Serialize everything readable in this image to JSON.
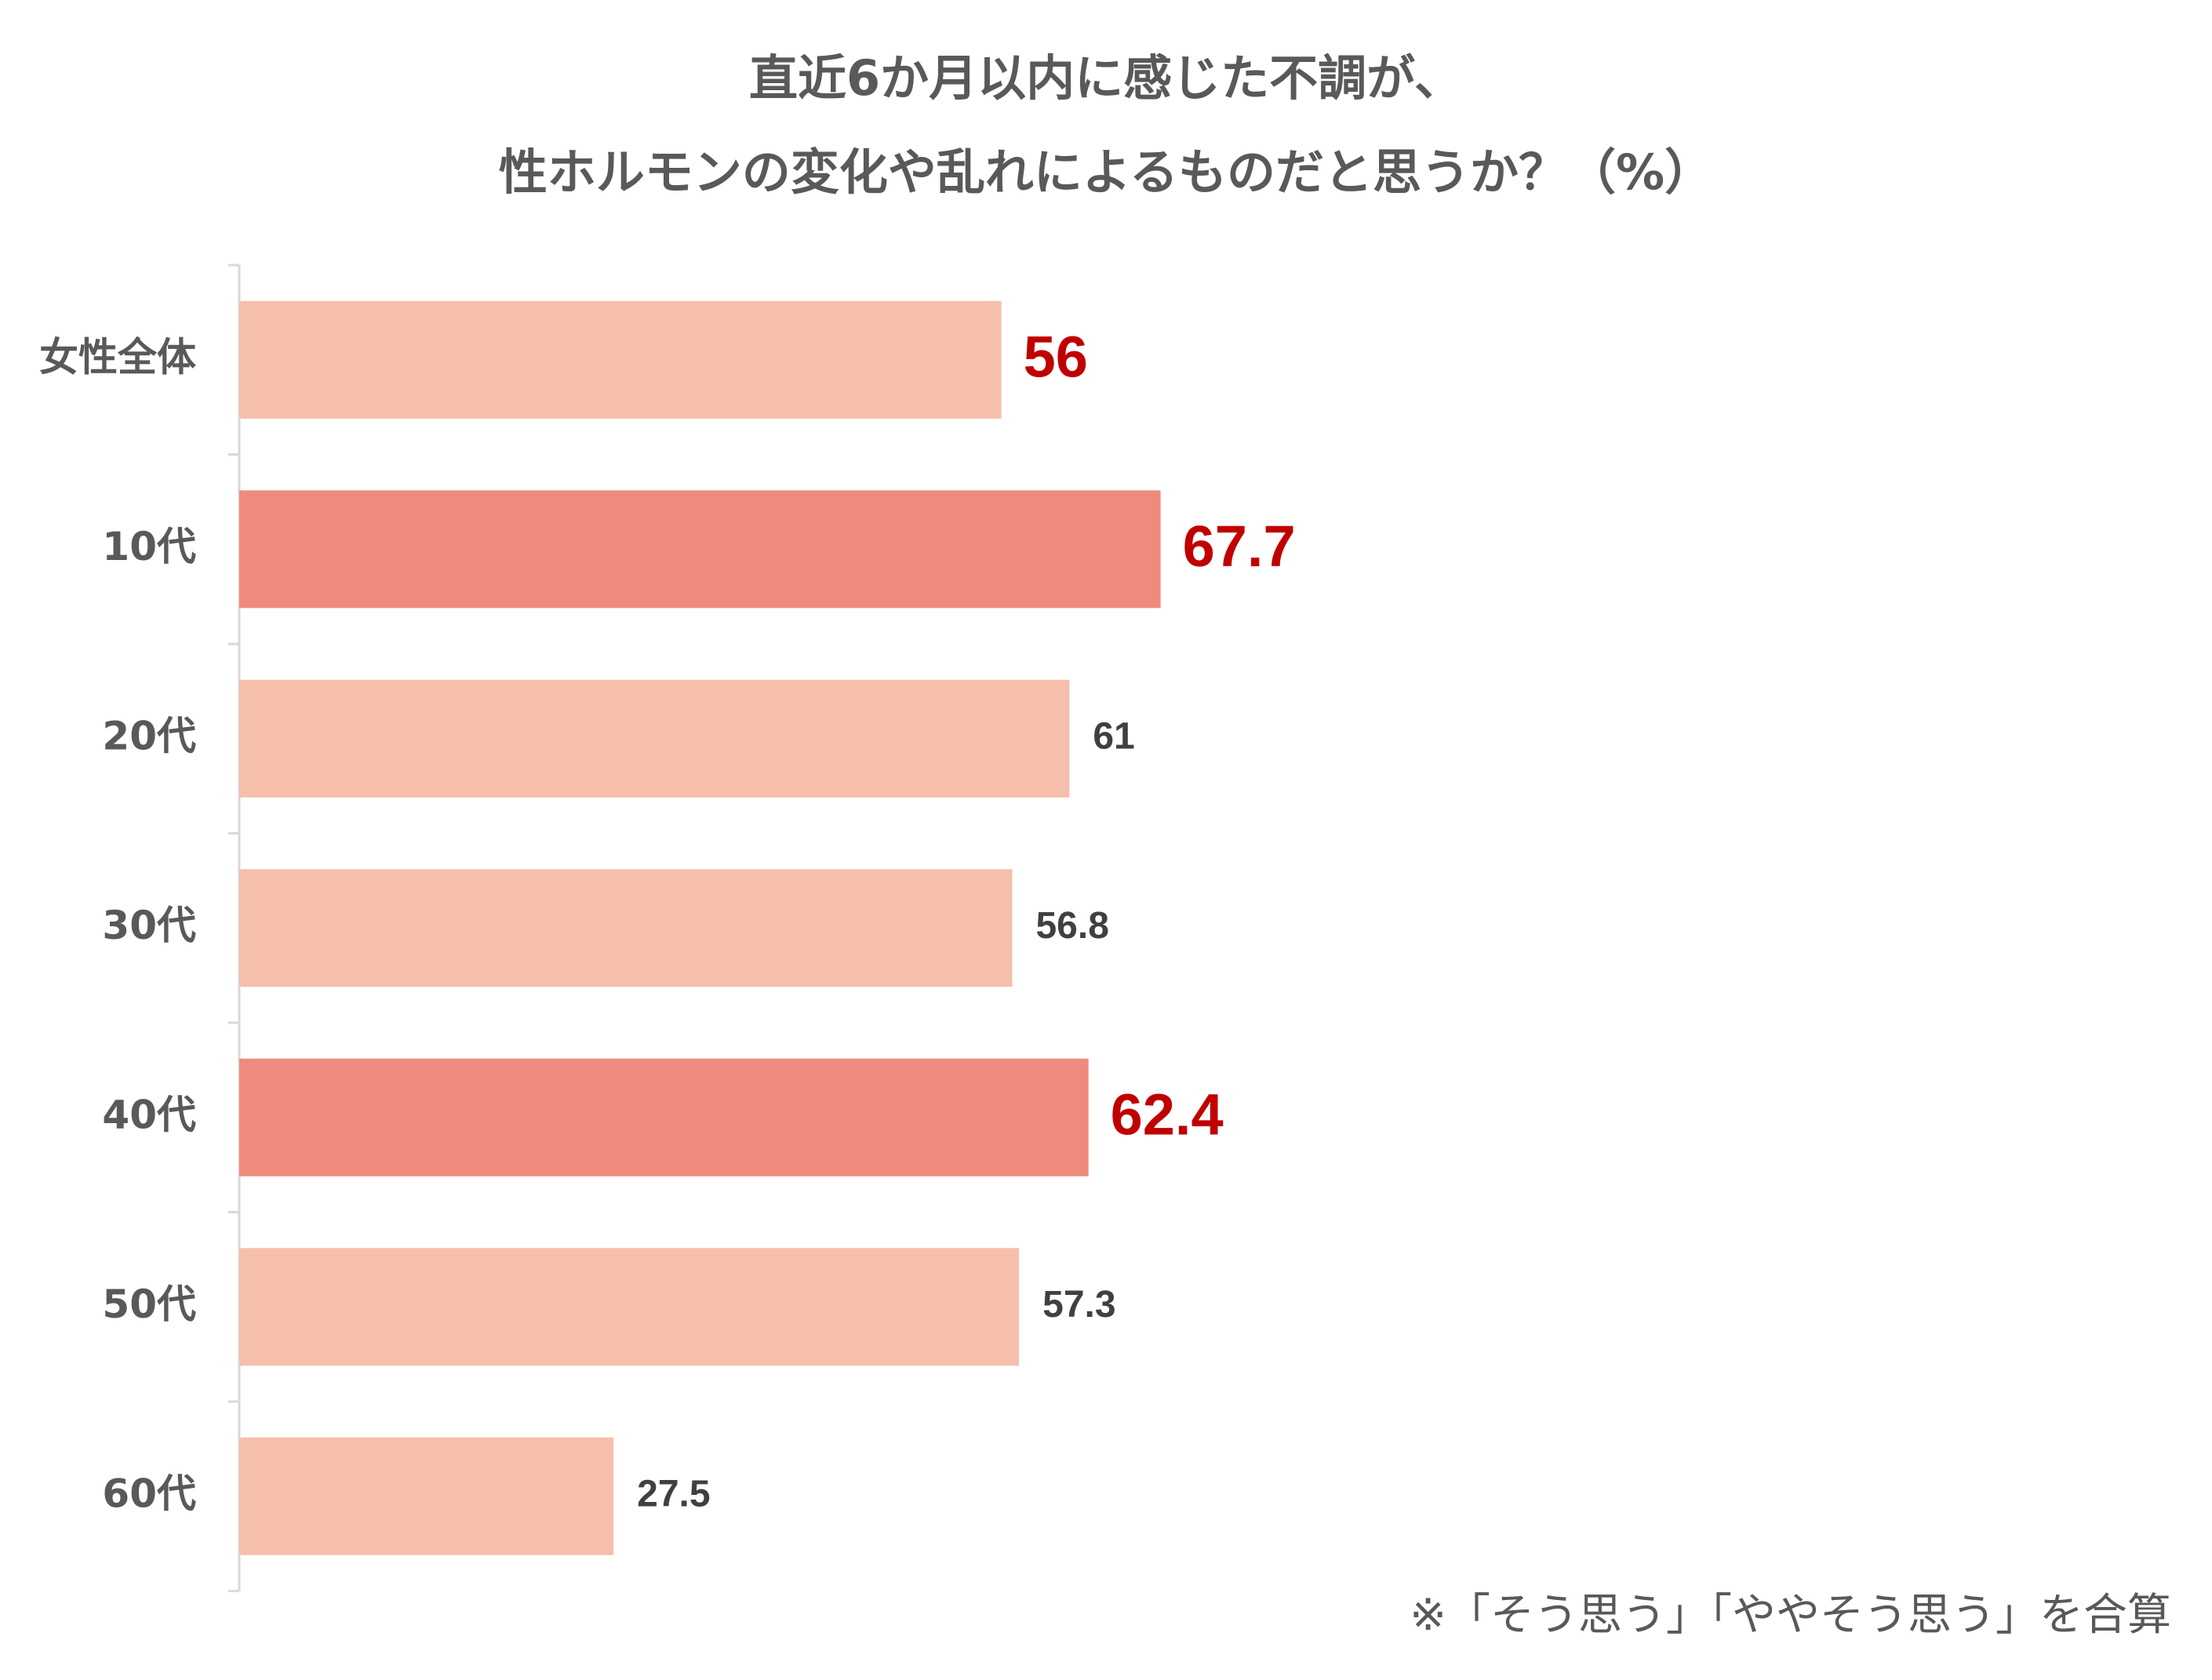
{
  "chart_data": {
    "type": "bar",
    "orientation": "horizontal",
    "title_lines": [
      "直近6か月以内に感じた不調が、",
      "性ホルモンの変化や乱れによるものだと思うか？（%）"
    ],
    "categories": [
      "女性全体",
      "10代",
      "20代",
      "30代",
      "40代",
      "50代",
      "60代"
    ],
    "values": [
      56,
      67.7,
      61,
      56.8,
      62.4,
      57.3,
      27.5
    ],
    "value_labels": [
      "56",
      "67.7",
      "61",
      "56.8",
      "62.4",
      "57.3",
      "27.5"
    ],
    "highlighted": [
      true,
      true,
      false,
      false,
      true,
      false,
      false
    ],
    "emphasized_bar": [
      false,
      true,
      false,
      false,
      true,
      false,
      false
    ],
    "xlim": [
      0,
      100
    ],
    "grid": false,
    "legend": "none",
    "footnote": "※「そう思う」「ややそう思う」を合算"
  },
  "colors": {
    "bar_default": "#F5BFAB",
    "bar_emphasis": "#EE8B7D",
    "label_highlight": "#C00000",
    "label_default": "#404040",
    "category_text": "#595959",
    "title_text": "#595959",
    "axis_line": "#D9D9D9"
  }
}
